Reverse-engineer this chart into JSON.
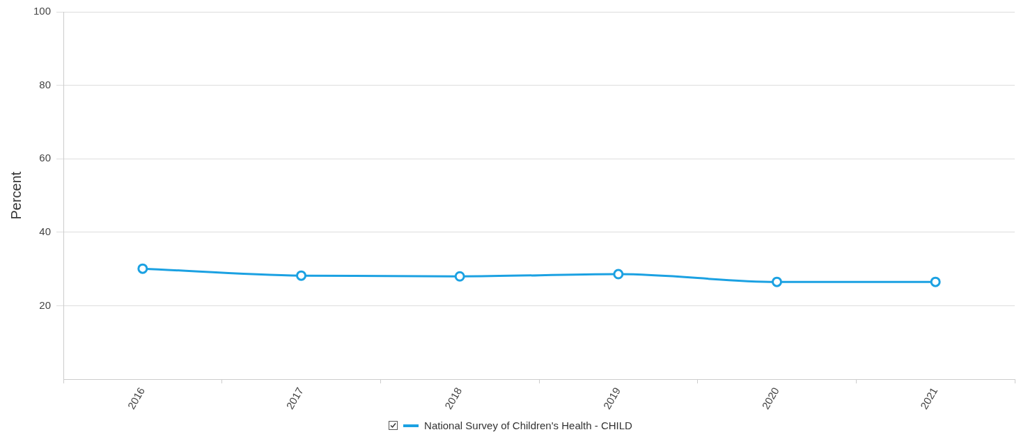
{
  "chart_data": {
    "type": "line",
    "ylabel": "Percent",
    "categories": [
      "2016",
      "2017",
      "2018",
      "2019",
      "2020",
      "2021"
    ],
    "series": [
      {
        "name": "National Survey of Children's Health - CHILD",
        "color": "#1ba1e2",
        "values": [
          30.1,
          28.2,
          28.0,
          28.6,
          26.5,
          26.5
        ]
      }
    ],
    "ylim": [
      0,
      100
    ],
    "yticks": [
      {
        "value": 0,
        "label": null
      },
      20,
      40,
      60,
      80,
      100
    ],
    "grid": "y",
    "legend": "bottom",
    "marker": "circle",
    "line_style": "solid"
  }
}
